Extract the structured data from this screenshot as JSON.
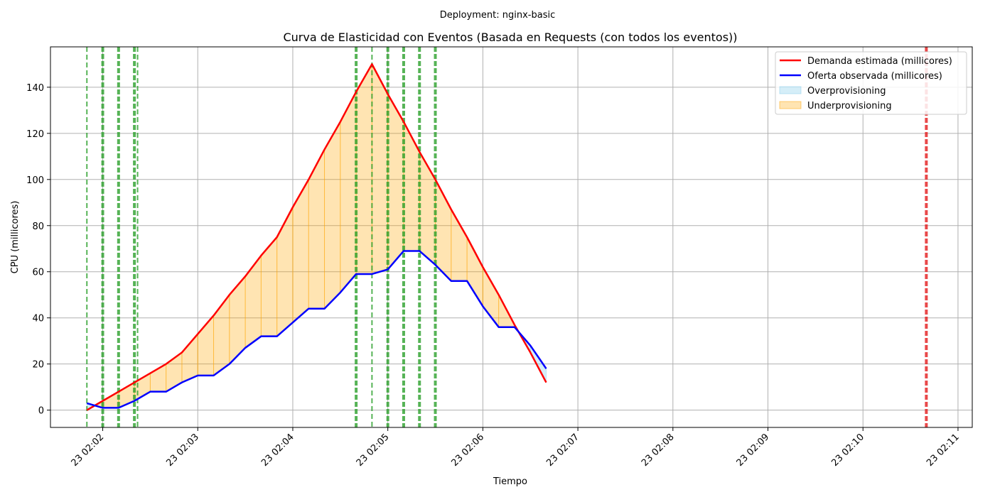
{
  "suptitle": "Deployment: nginx-basic",
  "chart_data": {
    "type": "line",
    "title": "Curva de Elasticidad con Eventos (Basada en Requests (con todos los eventos))",
    "xlabel": "Tiempo",
    "ylabel": "CPU (millicores)",
    "xlim": [
      "02:01:27",
      "02:11:09"
    ],
    "ylim": [
      -7.5,
      157.5
    ],
    "grid": true,
    "legend_position": "top-right",
    "x_ticks": [
      {
        "t": "02:02:00",
        "label": "23 02:02"
      },
      {
        "t": "02:03:00",
        "label": "23 02:03"
      },
      {
        "t": "02:04:00",
        "label": "23 02:04"
      },
      {
        "t": "02:05:00",
        "label": "23 02:05"
      },
      {
        "t": "02:06:00",
        "label": "23 02:06"
      },
      {
        "t": "02:07:00",
        "label": "23 02:07"
      },
      {
        "t": "02:08:00",
        "label": "23 02:08"
      },
      {
        "t": "02:09:00",
        "label": "23 02:09"
      },
      {
        "t": "02:10:00",
        "label": "23 02:10"
      },
      {
        "t": "02:11:00",
        "label": "23 02:11"
      }
    ],
    "y_ticks": [
      0,
      20,
      40,
      60,
      80,
      100,
      120,
      140
    ],
    "x": [
      "02:01:50",
      "02:02:00",
      "02:02:10",
      "02:02:20",
      "02:02:30",
      "02:02:40",
      "02:02:50",
      "02:03:00",
      "02:03:10",
      "02:03:20",
      "02:03:30",
      "02:03:40",
      "02:03:50",
      "02:04:00",
      "02:04:10",
      "02:04:20",
      "02:04:30",
      "02:04:40",
      "02:04:50",
      "02:05:00",
      "02:05:10",
      "02:05:20",
      "02:05:30",
      "02:05:40",
      "02:05:50",
      "02:06:00",
      "02:06:10",
      "02:06:20",
      "02:06:30",
      "02:06:40"
    ],
    "series": [
      {
        "name": "Demanda estimada (millicores)",
        "color": "#ff0000",
        "values": [
          0,
          4,
          8,
          12,
          16,
          20,
          25,
          33,
          41,
          50,
          58,
          67,
          75,
          88,
          100,
          113,
          125,
          138,
          150,
          137,
          125,
          112,
          100,
          87,
          75,
          62,
          50,
          37,
          25,
          12
        ]
      },
      {
        "name": "Oferta observada (millicores)",
        "color": "#0000ff",
        "values": [
          3,
          1,
          1,
          4,
          8,
          8,
          12,
          15,
          15,
          20,
          27,
          32,
          32,
          38,
          44,
          44,
          51,
          59,
          59,
          61,
          69,
          69,
          63,
          56,
          56,
          45,
          36,
          36,
          28,
          18
        ]
      }
    ],
    "fills": [
      {
        "name": "Overprovisioning",
        "color": "#87ceeb",
        "opacity": 0.35,
        "when": "supply_above_demand"
      },
      {
        "name": "Underprovisioning",
        "color": "#ffa500",
        "opacity": 0.3,
        "when": "demand_above_supply"
      }
    ],
    "event_lines": [
      {
        "t": "02:01:50",
        "color": "#2ca02c",
        "heavy": false
      },
      {
        "t": "02:02:00",
        "color": "#2ca02c",
        "heavy": true
      },
      {
        "t": "02:02:10",
        "color": "#2ca02c",
        "heavy": true
      },
      {
        "t": "02:02:20",
        "color": "#2ca02c",
        "heavy": true
      },
      {
        "t": "02:02:22",
        "color": "#2ca02c",
        "heavy": false
      },
      {
        "t": "02:04:40",
        "color": "#2ca02c",
        "heavy": true
      },
      {
        "t": "02:04:50",
        "color": "#2ca02c",
        "heavy": false
      },
      {
        "t": "02:05:00",
        "color": "#2ca02c",
        "heavy": true
      },
      {
        "t": "02:05:10",
        "color": "#2ca02c",
        "heavy": true
      },
      {
        "t": "02:05:20",
        "color": "#2ca02c",
        "heavy": true
      },
      {
        "t": "02:05:30",
        "color": "#2ca02c",
        "heavy": true
      },
      {
        "t": "02:10:40",
        "color": "#e31a1c",
        "heavy": true
      }
    ]
  }
}
